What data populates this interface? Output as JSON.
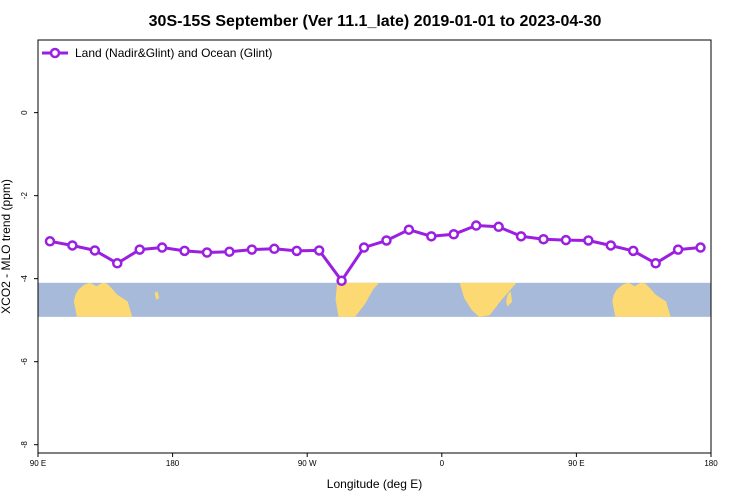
{
  "chart_data": {
    "type": "line",
    "title": "30S-15S September (Ver 11.1_late)   2019-01-01 to 2023-04-30",
    "xlabel": "Longitude (deg E)",
    "ylabel": "XCO2 - MLO trend (ppm)",
    "xticks": [
      {
        "value": 90,
        "label": "90 E"
      },
      {
        "value": 180,
        "label": "180"
      },
      {
        "value": 270,
        "label": "90 W"
      },
      {
        "value": 360,
        "label": "0"
      },
      {
        "value": 450,
        "label": "90 E"
      },
      {
        "value": 540,
        "label": "180"
      }
    ],
    "yticks": [
      {
        "value": 0,
        "label": "0"
      },
      {
        "value": -2,
        "label": "-2"
      },
      {
        "value": -4,
        "label": "-4"
      },
      {
        "value": -6,
        "label": "-6"
      },
      {
        "value": -8,
        "label": "-8"
      }
    ],
    "xlim": [
      90,
      540
    ],
    "ylim": [
      -8.2,
      1.75
    ],
    "grid": false,
    "legend_position": "top-left",
    "series": [
      {
        "name": "Land (Nadir&Glint) and Ocean (Glint)",
        "color": "#9b1fe0",
        "x": [
          98,
          113,
          128,
          143,
          158,
          173,
          188,
          203,
          218,
          233,
          248,
          263,
          278,
          293,
          308,
          323,
          338,
          353,
          368,
          383,
          398,
          413,
          428,
          443,
          458,
          473,
          488,
          503,
          518,
          533
        ],
        "y": [
          -3.1,
          -3.2,
          -3.32,
          -3.63,
          -3.3,
          -3.25,
          -3.33,
          -3.37,
          -3.35,
          -3.3,
          -3.28,
          -3.33,
          -3.32,
          -4.05,
          -3.25,
          -3.08,
          -2.82,
          -2.98,
          -2.93,
          -2.72,
          -2.75,
          -2.98,
          -3.05,
          -3.07,
          -3.08,
          -3.2,
          -3.33,
          -3.63,
          -3.3,
          -3.25
        ]
      }
    ],
    "map_strip": {
      "ocean_color": "#a7bad9",
      "land_color": "#fcd972",
      "y_range": [
        -4.92,
        -4.1
      ]
    }
  }
}
